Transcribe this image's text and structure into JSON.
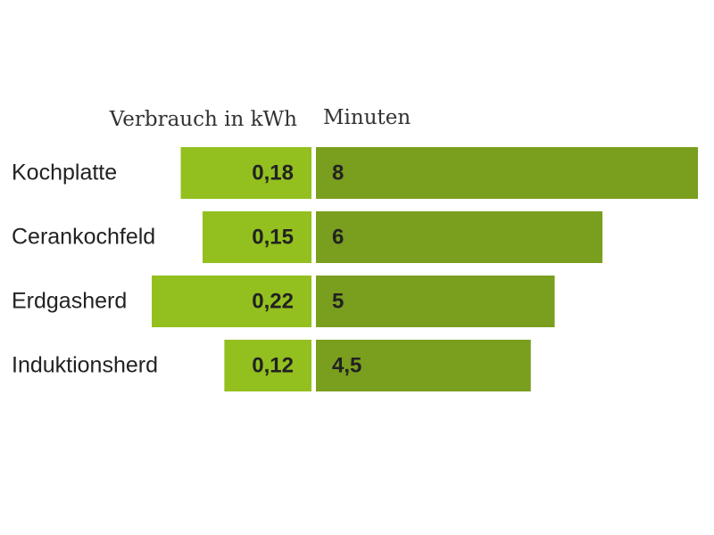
{
  "chart_data": {
    "type": "butterfly-bar",
    "categories": [
      "Kochplatte",
      "Cerankochfeld",
      "Erdgasherd",
      "Induktionsherd"
    ],
    "series": [
      {
        "name": "Verbrauch in kWh",
        "color": "#93c01f",
        "values": [
          0.18,
          0.15,
          0.22,
          0.12
        ],
        "value_labels": [
          "0,18",
          "0,15",
          "0,22",
          "0,12"
        ]
      },
      {
        "name": "Minuten",
        "color": "#7a9e1e",
        "values": [
          8,
          6,
          5,
          4.5
        ],
        "value_labels": [
          "8",
          "6",
          "5",
          "4,5"
        ]
      }
    ]
  }
}
